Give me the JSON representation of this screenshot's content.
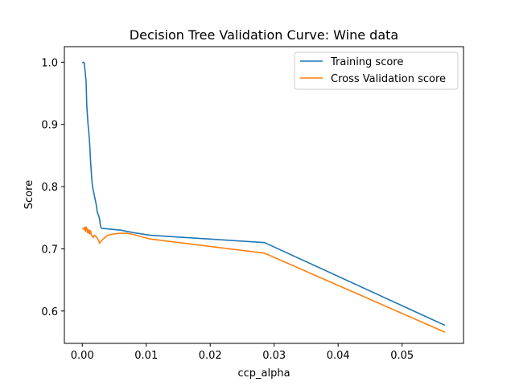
{
  "chart_data": {
    "type": "line",
    "title": "Decision Tree Validation Curve: Wine data",
    "xlabel": "ccp_alpha",
    "ylabel": "Score",
    "xlim": [
      -0.0028,
      0.0596
    ],
    "ylim": [
      0.548,
      1.025
    ],
    "xticks": [
      0.0,
      0.01,
      0.02,
      0.03,
      0.04,
      0.05
    ],
    "xtick_labels": [
      "0.00",
      "0.01",
      "0.02",
      "0.03",
      "0.04",
      "0.05"
    ],
    "yticks": [
      0.6,
      0.7,
      0.8,
      0.9,
      1.0
    ],
    "ytick_labels": [
      "0.6",
      "0.7",
      "0.8",
      "0.9",
      "1.0"
    ],
    "grid": false,
    "legend_position": "top-right",
    "series": [
      {
        "name": "Training score",
        "color": "#1f77b4",
        "points": [
          [
            0.0,
            0.999
          ],
          [
            0.0002,
            1.0
          ],
          [
            0.0003,
            0.999
          ],
          [
            0.00045,
            0.985
          ],
          [
            0.0006,
            0.968
          ],
          [
            0.0007,
            0.93
          ],
          [
            0.0008,
            0.915
          ],
          [
            0.0009,
            0.9
          ],
          [
            0.001,
            0.89
          ],
          [
            0.0011,
            0.878
          ],
          [
            0.0012,
            0.86
          ],
          [
            0.0013,
            0.84
          ],
          [
            0.0014,
            0.825
          ],
          [
            0.0015,
            0.81
          ],
          [
            0.0016,
            0.8
          ],
          [
            0.0017,
            0.795
          ],
          [
            0.0018,
            0.79
          ],
          [
            0.0019,
            0.785
          ],
          [
            0.002,
            0.78
          ],
          [
            0.0021,
            0.775
          ],
          [
            0.0022,
            0.77
          ],
          [
            0.0023,
            0.762
          ],
          [
            0.0024,
            0.757
          ],
          [
            0.0025,
            0.755
          ],
          [
            0.0026,
            0.752
          ],
          [
            0.0027,
            0.748
          ],
          [
            0.0028,
            0.74
          ],
          [
            0.0029,
            0.735
          ],
          [
            0.003,
            0.733
          ],
          [
            0.004,
            0.732
          ],
          [
            0.006,
            0.73
          ],
          [
            0.008,
            0.726
          ],
          [
            0.0105,
            0.722
          ],
          [
            0.0285,
            0.71
          ],
          [
            0.0567,
            0.577
          ]
        ]
      },
      {
        "name": "Cross Validation score",
        "color": "#ff7f0e",
        "points": [
          [
            0.0,
            0.733
          ],
          [
            0.0002,
            0.733
          ],
          [
            0.0003,
            0.731
          ],
          [
            0.0004,
            0.735
          ],
          [
            0.0005,
            0.728
          ],
          [
            0.0006,
            0.735
          ],
          [
            0.0007,
            0.733
          ],
          [
            0.0008,
            0.726
          ],
          [
            0.0009,
            0.731
          ],
          [
            0.001,
            0.725
          ],
          [
            0.0011,
            0.73
          ],
          [
            0.0012,
            0.724
          ],
          [
            0.0013,
            0.729
          ],
          [
            0.0014,
            0.723
          ],
          [
            0.0015,
            0.721
          ],
          [
            0.0016,
            0.72
          ],
          [
            0.0017,
            0.718
          ],
          [
            0.0018,
            0.72
          ],
          [
            0.0019,
            0.722
          ],
          [
            0.002,
            0.721
          ],
          [
            0.0021,
            0.72
          ],
          [
            0.0022,
            0.719
          ],
          [
            0.0023,
            0.718
          ],
          [
            0.0024,
            0.716
          ],
          [
            0.0025,
            0.714
          ],
          [
            0.0026,
            0.712
          ],
          [
            0.0027,
            0.709
          ],
          [
            0.0028,
            0.71
          ],
          [
            0.003,
            0.713
          ],
          [
            0.0033,
            0.716
          ],
          [
            0.004,
            0.722
          ],
          [
            0.005,
            0.724
          ],
          [
            0.006,
            0.725
          ],
          [
            0.007,
            0.725
          ],
          [
            0.008,
            0.723
          ],
          [
            0.0105,
            0.716
          ],
          [
            0.0285,
            0.693
          ],
          [
            0.0567,
            0.566
          ]
        ]
      }
    ]
  }
}
